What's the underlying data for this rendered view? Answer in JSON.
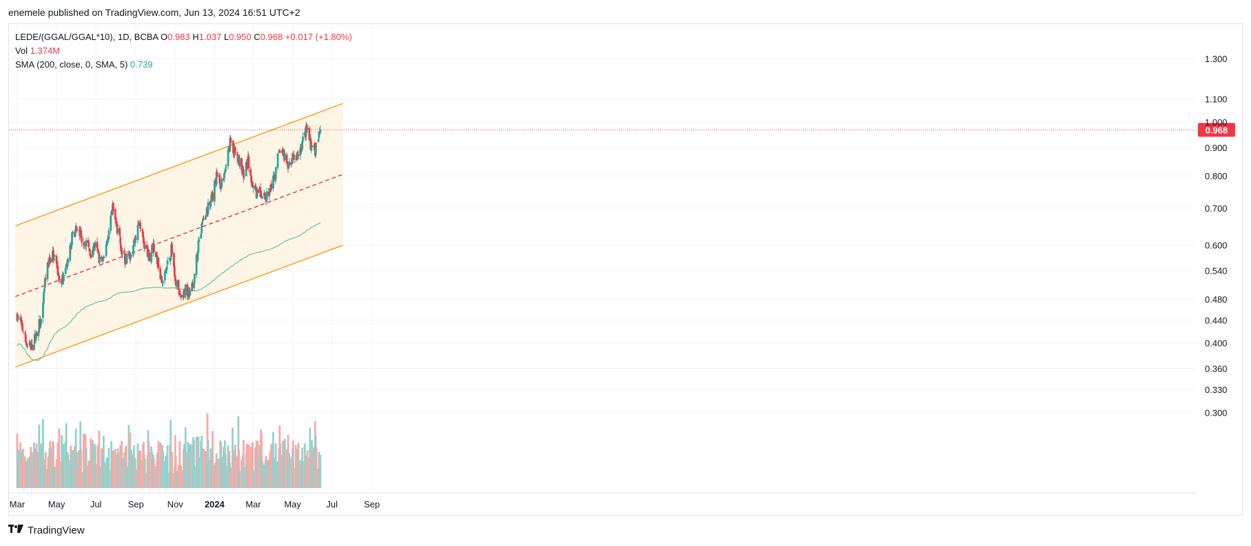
{
  "header": {
    "publisher_line": "enemele published on TradingView.com, Jun 13, 2024 16:51 UTC+2"
  },
  "legend": {
    "symbol": "LEDE/(GGAL/GGAL*10), 1D, BCBA",
    "o_label": "O",
    "o_value": "0.983",
    "h_label": "H",
    "h_value": "1.037",
    "l_label": "L",
    "l_value": "0.950",
    "c_label": "C",
    "c_value": "0.968",
    "change": "+0.017 (+1.80%)",
    "vol_label": "Vol",
    "vol_value": "1.374M",
    "sma_label": "SMA (200, close, 0, SMA, 5)",
    "sma_value": "0.739"
  },
  "price_tag": "0.968",
  "footer": {
    "brand": "TradingView",
    "logo_icon": "tradingview-logo-icon"
  },
  "colors": {
    "up": "#26a69a",
    "down": "#f23645",
    "channel": "#f7a21b",
    "channel_fill": "#fff5e6",
    "midline": "#f23645",
    "sma": "#80cbb2",
    "price_line": "#f23645"
  },
  "chart_data": {
    "type": "candlestick",
    "y_scale": "log",
    "y_ticks": [
      "1.300",
      "1.100",
      "1.000",
      "0.900",
      "0.800",
      "0.700",
      "0.600",
      "0.540",
      "0.480",
      "0.440",
      "0.400",
      "0.360",
      "0.330",
      "0.300"
    ],
    "x_ticks": [
      "Mar",
      "May",
      "Jul",
      "Sep",
      "Nov",
      "2024",
      "Mar",
      "May",
      "Jul",
      "Sep"
    ],
    "last_close": 0.968,
    "anchors": [
      {
        "date": "2023-03-01",
        "close": 0.45
      },
      {
        "date": "2023-03-08",
        "close": 0.43
      },
      {
        "date": "2023-03-15",
        "close": 0.4
      },
      {
        "date": "2023-03-22",
        "close": 0.39
      },
      {
        "date": "2023-03-29",
        "close": 0.41
      },
      {
        "date": "2023-04-06",
        "close": 0.44
      },
      {
        "date": "2023-04-13",
        "close": 0.52
      },
      {
        "date": "2023-04-20",
        "close": 0.57
      },
      {
        "date": "2023-04-27",
        "close": 0.58
      },
      {
        "date": "2023-05-04",
        "close": 0.53
      },
      {
        "date": "2023-05-11",
        "close": 0.52
      },
      {
        "date": "2023-05-18",
        "close": 0.55
      },
      {
        "date": "2023-05-25",
        "close": 0.62
      },
      {
        "date": "2023-06-01",
        "close": 0.64
      },
      {
        "date": "2023-06-08",
        "close": 0.62
      },
      {
        "date": "2023-06-15",
        "close": 0.61
      },
      {
        "date": "2023-06-22",
        "close": 0.58
      },
      {
        "date": "2023-06-29",
        "close": 0.6
      },
      {
        "date": "2023-07-06",
        "close": 0.57
      },
      {
        "date": "2023-07-13",
        "close": 0.56
      },
      {
        "date": "2023-07-20",
        "close": 0.63
      },
      {
        "date": "2023-07-27",
        "close": 0.7
      },
      {
        "date": "2023-08-03",
        "close": 0.64
      },
      {
        "date": "2023-08-10",
        "close": 0.59
      },
      {
        "date": "2023-08-17",
        "close": 0.56
      },
      {
        "date": "2023-08-24",
        "close": 0.58
      },
      {
        "date": "2023-08-31",
        "close": 0.62
      },
      {
        "date": "2023-09-07",
        "close": 0.66
      },
      {
        "date": "2023-09-14",
        "close": 0.6
      },
      {
        "date": "2023-09-21",
        "close": 0.57
      },
      {
        "date": "2023-09-28",
        "close": 0.6
      },
      {
        "date": "2023-10-05",
        "close": 0.56
      },
      {
        "date": "2023-10-12",
        "close": 0.51
      },
      {
        "date": "2023-10-19",
        "close": 0.55
      },
      {
        "date": "2023-10-26",
        "close": 0.59
      },
      {
        "date": "2023-11-02",
        "close": 0.52
      },
      {
        "date": "2023-11-09",
        "close": 0.48
      },
      {
        "date": "2023-11-16",
        "close": 0.5
      },
      {
        "date": "2023-11-23",
        "close": 0.49
      },
      {
        "date": "2023-11-30",
        "close": 0.52
      },
      {
        "date": "2023-12-07",
        "close": 0.6
      },
      {
        "date": "2023-12-14",
        "close": 0.66
      },
      {
        "date": "2023-12-21",
        "close": 0.7
      },
      {
        "date": "2023-12-28",
        "close": 0.73
      },
      {
        "date": "2024-01-04",
        "close": 0.8
      },
      {
        "date": "2024-01-11",
        "close": 0.77
      },
      {
        "date": "2024-01-18",
        "close": 0.82
      },
      {
        "date": "2024-01-25",
        "close": 0.93
      },
      {
        "date": "2024-02-01",
        "close": 0.88
      },
      {
        "date": "2024-02-08",
        "close": 0.85
      },
      {
        "date": "2024-02-15",
        "close": 0.8
      },
      {
        "date": "2024-02-22",
        "close": 0.86
      },
      {
        "date": "2024-02-29",
        "close": 0.76
      },
      {
        "date": "2024-03-07",
        "close": 0.74
      },
      {
        "date": "2024-03-14",
        "close": 0.75
      },
      {
        "date": "2024-03-21",
        "close": 0.73
      },
      {
        "date": "2024-03-28",
        "close": 0.76
      },
      {
        "date": "2024-04-04",
        "close": 0.8
      },
      {
        "date": "2024-04-11",
        "close": 0.9
      },
      {
        "date": "2024-04-18",
        "close": 0.86
      },
      {
        "date": "2024-04-25",
        "close": 0.84
      },
      {
        "date": "2024-05-02",
        "close": 0.86
      },
      {
        "date": "2024-05-09",
        "close": 0.87
      },
      {
        "date": "2024-05-16",
        "close": 0.92
      },
      {
        "date": "2024-05-23",
        "close": 0.97
      },
      {
        "date": "2024-05-30",
        "close": 0.9
      },
      {
        "date": "2024-06-06",
        "close": 0.89
      },
      {
        "date": "2024-06-13",
        "close": 0.968
      }
    ],
    "volume_peak": 1.374,
    "sma_last": 0.739,
    "channel": {
      "upper": [
        {
          "date": "2023-02-26",
          "price": 0.65
        },
        {
          "date": "2024-07-18",
          "price": 1.08
        }
      ],
      "lower": [
        {
          "date": "2023-02-26",
          "price": 0.362
        },
        {
          "date": "2024-07-18",
          "price": 0.6
        }
      ],
      "mid": [
        {
          "date": "2023-02-26",
          "price": 0.485
        },
        {
          "date": "2024-07-18",
          "price": 0.805
        }
      ]
    }
  }
}
